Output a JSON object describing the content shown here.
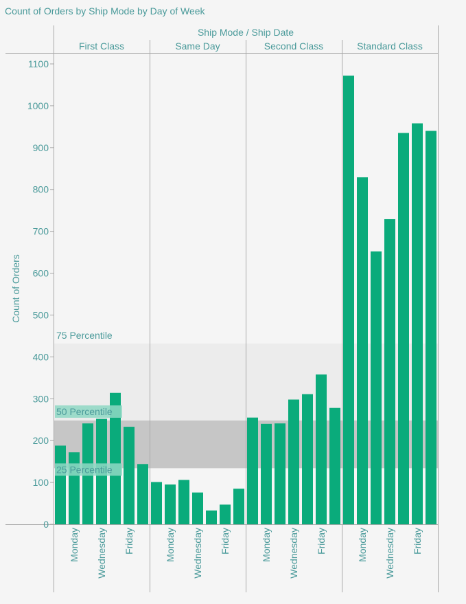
{
  "chart_data": {
    "type": "bar",
    "title": "Count of Orders by Ship Mode by Day of Week",
    "column_header": {
      "left": "Ship Mode",
      "separator": "/",
      "right": "Ship Date"
    },
    "ylabel": "Count of Orders",
    "ylim": [
      0,
      1100
    ],
    "yticks": [
      0,
      100,
      200,
      300,
      400,
      500,
      600,
      700,
      800,
      900,
      1000,
      1100
    ],
    "day_labels": [
      "",
      "Monday",
      "",
      "Wednesday",
      "",
      "Friday",
      ""
    ],
    "groups": [
      {
        "name": "First Class",
        "values": [
          188,
          172,
          241,
          252,
          314,
          233,
          144
        ]
      },
      {
        "name": "Same Day",
        "values": [
          101,
          95,
          106,
          76,
          33,
          47,
          85
        ]
      },
      {
        "name": "Second Class",
        "values": [
          255,
          240,
          241,
          298,
          311,
          358,
          278
        ]
      },
      {
        "name": "Standard Class",
        "values": [
          1072,
          829,
          652,
          729,
          935,
          958,
          940
        ]
      }
    ],
    "reference_bands": [
      {
        "label": "75 Percentile",
        "from": 248,
        "to": 432
      },
      {
        "label": "50 Percentile",
        "from": 134,
        "to": 248
      },
      {
        "label": "25 Percentile",
        "value": 134
      }
    ],
    "colors": {
      "bar": "#0aab7b",
      "text": "#4a9a9a",
      "band_light": "#ececec",
      "band_dark": "#c6c6c6",
      "label_bg": "#8fd8c4"
    }
  }
}
